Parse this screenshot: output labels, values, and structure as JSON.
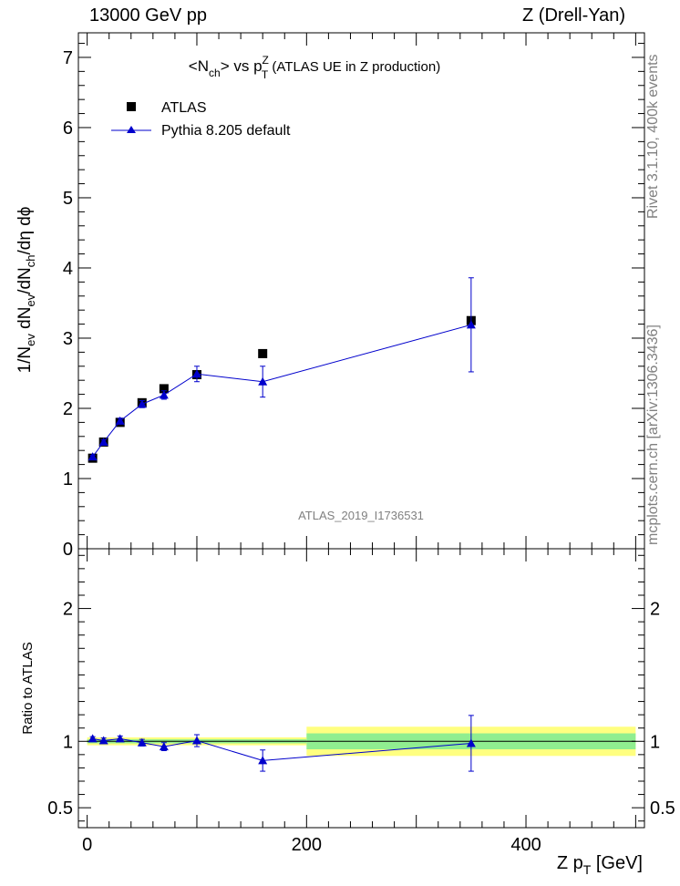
{
  "header": {
    "left": "13000 GeV pp",
    "right": "Z (Drell-Yan)"
  },
  "side_labels": {
    "rivet": "Rivet 3.1.10,  400k events",
    "mcplots": "mcplots.cern.ch [arXiv:1306.3436]"
  },
  "watermark": "ATLAS_2019_I1736531",
  "colors": {
    "data": "#000000",
    "mc": "#0000cc",
    "band_inner": "#90ee90",
    "band_outer": "#ffff80",
    "ref_text": "#808080"
  },
  "chart_data": [
    {
      "type": "scatter",
      "panel": "main",
      "title_parts": {
        "open": "<N",
        "sub1": "ch",
        "mid": "> vs p",
        "sup": "Z",
        "sub2": "T",
        "rest": " (ATLAS UE in Z production)"
      },
      "ylabel_parts": [
        "1/N",
        "ev",
        " dN",
        "ev",
        "/dN",
        "ch",
        "/dη dϕ"
      ],
      "ylim": [
        0,
        7.35
      ],
      "yticks": [
        0,
        1,
        2,
        3,
        4,
        5,
        6,
        7
      ],
      "ytick_labels": [
        "0",
        "1",
        "2",
        "3",
        "4",
        "5",
        "6",
        "7"
      ],
      "legend": {
        "position": "top-left",
        "entries": [
          "ATLAS",
          "Pythia 8.205 default"
        ]
      },
      "series": [
        {
          "name": "ATLAS",
          "marker": "square",
          "x": [
            5,
            15,
            30,
            50,
            70,
            100,
            160,
            350
          ],
          "y": [
            1.29,
            1.52,
            1.8,
            2.08,
            2.28,
            2.48,
            2.78,
            3.25
          ],
          "yerr": [
            0.02,
            0.02,
            0.03,
            0.03,
            0.04,
            0.05,
            0.05,
            0.06
          ]
        },
        {
          "name": "Pythia 8.205 default",
          "marker": "triangle",
          "x": [
            5,
            15,
            30,
            50,
            70,
            100,
            160,
            350
          ],
          "y": [
            1.31,
            1.52,
            1.82,
            2.06,
            2.19,
            2.49,
            2.38,
            3.19
          ],
          "yerr": [
            0.02,
            0.03,
            0.04,
            0.05,
            0.06,
            0.11,
            0.22,
            0.67
          ]
        }
      ]
    },
    {
      "type": "scatter",
      "panel": "ratio",
      "ylabel": "Ratio to ATLAS",
      "xlabel_parts": [
        "Z p",
        "T",
        " [GeV]"
      ],
      "xlim": [
        -8,
        508
      ],
      "xticks": [
        0,
        200,
        400
      ],
      "xtick_labels": [
        "0",
        "200",
        "400"
      ],
      "ylim": [
        0.35,
        2.45
      ],
      "yticks": [
        0.5,
        1,
        2
      ],
      "ytick_labels": [
        "0.5",
        "1",
        "2"
      ],
      "bands": [
        {
          "x": [
            0,
            200
          ],
          "inner": [
            0.985,
            1.015
          ],
          "outer": [
            0.97,
            1.03
          ]
        },
        {
          "x": [
            200,
            500
          ],
          "inner": [
            0.94,
            1.06
          ],
          "outer": [
            0.89,
            1.11
          ]
        }
      ],
      "series": [
        {
          "name": "Pythia 8.205 default",
          "x": [
            5,
            15,
            30,
            50,
            70,
            100,
            160,
            350
          ],
          "y": [
            1.02,
            1.005,
            1.02,
            0.99,
            0.96,
            1.005,
            0.855,
            0.985
          ],
          "yerr": [
            0.015,
            0.02,
            0.02,
            0.025,
            0.03,
            0.045,
            0.08,
            0.21
          ]
        }
      ]
    }
  ]
}
